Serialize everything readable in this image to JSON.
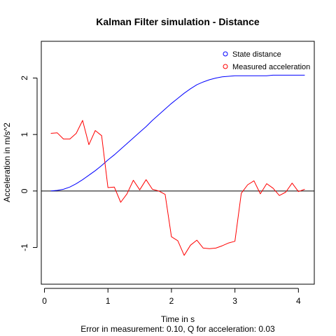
{
  "chart_data": {
    "type": "line",
    "title": "Kalman Filter simulation - Distance",
    "xlabel": "Time in s",
    "subtitle": "Error in measurement: 0.10, Q for acceleration: 0.03",
    "ylabel": "Acceleration in m/s^2",
    "xlim": [
      -0.05,
      4.25
    ],
    "ylim": [
      -1.65,
      2.65
    ],
    "x_ticks": [
      "0",
      "1",
      "2",
      "3",
      "4"
    ],
    "x_tick_values": [
      0,
      1,
      2,
      3,
      4
    ],
    "y_ticks": [
      "-1",
      "0",
      "1",
      "2"
    ],
    "y_tick_values": [
      -1,
      0,
      1,
      2
    ],
    "reference_line": 0,
    "legend_position": "top-right",
    "series": [
      {
        "name": "State distance",
        "color": "#0000ff",
        "x": [
          0.1,
          0.2,
          0.3,
          0.4,
          0.5,
          0.6,
          0.7,
          0.8,
          0.9,
          1.0,
          1.1,
          1.2,
          1.3,
          1.4,
          1.5,
          1.6,
          1.7,
          1.8,
          1.9,
          2.0,
          2.1,
          2.2,
          2.3,
          2.4,
          2.5,
          2.6,
          2.7,
          2.8,
          2.9,
          3.0,
          3.1,
          3.2,
          3.3,
          3.4,
          3.5,
          3.6,
          3.7,
          3.8,
          3.9,
          4.0,
          4.1
        ],
        "y": [
          0.0,
          0.01,
          0.03,
          0.07,
          0.13,
          0.2,
          0.28,
          0.36,
          0.45,
          0.55,
          0.64,
          0.74,
          0.84,
          0.94,
          1.04,
          1.14,
          1.25,
          1.35,
          1.45,
          1.55,
          1.64,
          1.73,
          1.81,
          1.88,
          1.93,
          1.97,
          2.0,
          2.02,
          2.03,
          2.04,
          2.04,
          2.04,
          2.04,
          2.04,
          2.04,
          2.05,
          2.05,
          2.05,
          2.05,
          2.05,
          2.05
        ]
      },
      {
        "name": "Measured acceleration",
        "color": "#ff0000",
        "x": [
          0.1,
          0.2,
          0.3,
          0.4,
          0.5,
          0.6,
          0.7,
          0.8,
          0.9,
          1.0,
          1.1,
          1.2,
          1.3,
          1.4,
          1.5,
          1.6,
          1.7,
          1.8,
          1.9,
          2.0,
          2.1,
          2.2,
          2.3,
          2.4,
          2.5,
          2.6,
          2.7,
          2.8,
          2.9,
          3.0,
          3.1,
          3.2,
          3.3,
          3.4,
          3.5,
          3.6,
          3.7,
          3.8,
          3.9,
          4.0,
          4.1
        ],
        "y": [
          1.02,
          1.03,
          0.92,
          0.92,
          1.02,
          1.25,
          0.82,
          1.07,
          0.98,
          0.06,
          0.07,
          -0.2,
          -0.05,
          0.19,
          0.02,
          0.2,
          0.03,
          0.0,
          -0.06,
          -0.81,
          -0.88,
          -1.14,
          -0.96,
          -0.87,
          -1.01,
          -1.02,
          -1.01,
          -0.97,
          -0.92,
          -0.89,
          -0.04,
          0.11,
          0.18,
          -0.05,
          0.13,
          0.05,
          -0.08,
          -0.02,
          0.14,
          -0.01,
          0.03
        ]
      }
    ]
  }
}
